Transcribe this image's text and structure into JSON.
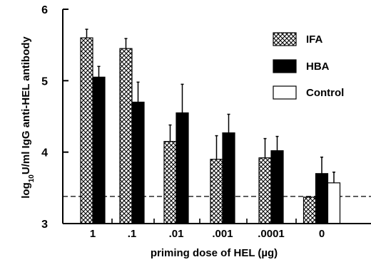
{
  "chart_data": {
    "type": "bar",
    "title": "",
    "xlabel": "priming dose of HEL (µg)",
    "ylabel": "log10U/ml IgG anti-HEL antibody",
    "ylabel_parts": {
      "pre": "log",
      "sub": "10",
      "post": "U/ml IgG anti-HEL antibody"
    },
    "ylim": [
      3,
      6
    ],
    "yticks": [
      "3",
      "4",
      "5",
      "6"
    ],
    "categories": [
      "1",
      ".1",
      ".01",
      ".001",
      ".0001",
      "0"
    ],
    "series": [
      {
        "name": "IFA",
        "pattern": "crosshatch",
        "color": "#000000",
        "values": [
          5.6,
          5.45,
          4.15,
          3.9,
          3.92,
          3.37
        ],
        "errors": [
          0.12,
          0.14,
          0.23,
          0.33,
          0.27,
          null
        ]
      },
      {
        "name": "HBA",
        "pattern": "solid",
        "color": "#000000",
        "values": [
          5.05,
          4.7,
          4.55,
          4.27,
          4.02,
          3.7
        ],
        "errors": [
          0.15,
          0.28,
          0.4,
          0.26,
          0.2,
          0.23
        ]
      },
      {
        "name": "Control",
        "pattern": "empty",
        "color": "#ffffff",
        "values": [
          null,
          null,
          null,
          null,
          null,
          3.57
        ],
        "errors": [
          null,
          null,
          null,
          null,
          null,
          0.15
        ]
      }
    ],
    "reference_line": {
      "y": 3.38,
      "style": "dashed"
    },
    "legend": {
      "position": "top-right"
    },
    "grid": false
  }
}
